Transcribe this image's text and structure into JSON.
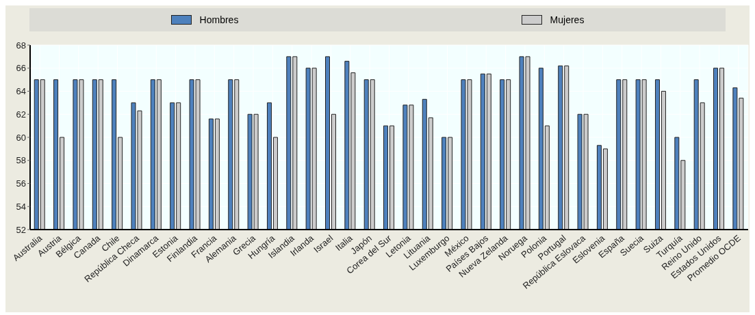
{
  "chart_data": {
    "type": "bar",
    "categories": [
      "Australia",
      "Austria",
      "Bélgica",
      "Canada",
      "Chile",
      "República Checa",
      "Dinamarca",
      "Estonia",
      "Finlandia",
      "Francia",
      "Alemania",
      "Grecia",
      "Hungría",
      "Islandia",
      "Irlanda",
      "Israel",
      "Italia",
      "Japón",
      "Corea del Sur",
      "Letonia",
      "Lituania",
      "Luxemburgo",
      "México",
      "Países Bajos",
      "Nueva Zelanda",
      "Noruega",
      "Polonia",
      "Portugal",
      "República Eslovaca",
      "Eslovenia",
      "España",
      "Suecia",
      "Suiza",
      "Turquía",
      "Reino Unido",
      "Estados Unidos",
      "Promedio OCDE"
    ],
    "series": [
      {
        "name": "Hombres",
        "color": "#4e81bd",
        "values": [
          65,
          65,
          65,
          65,
          65,
          63,
          65,
          63,
          65,
          61.6,
          65,
          62,
          63,
          67,
          66,
          67,
          66.6,
          65,
          61,
          62.8,
          63.3,
          60,
          65,
          65.5,
          65,
          67,
          66,
          66.2,
          62,
          59.3,
          65,
          65,
          65,
          60,
          65,
          66,
          64.3
        ]
      },
      {
        "name": "Mujeres",
        "color": "#cccccc",
        "values": [
          65,
          60,
          65,
          65,
          60,
          62.3,
          65,
          63,
          65,
          61.6,
          65,
          62,
          60,
          67,
          66,
          62,
          65.6,
          65,
          61,
          62.8,
          61.7,
          60,
          65,
          65.5,
          65,
          67,
          61,
          66.2,
          62,
          59,
          65,
          65,
          64,
          58,
          63,
          66,
          63.4
        ]
      }
    ],
    "ylim": [
      52,
      68
    ],
    "yticks": [
      52,
      54,
      56,
      58,
      60,
      62,
      64,
      66,
      68
    ],
    "grid": true,
    "legend": "top"
  }
}
